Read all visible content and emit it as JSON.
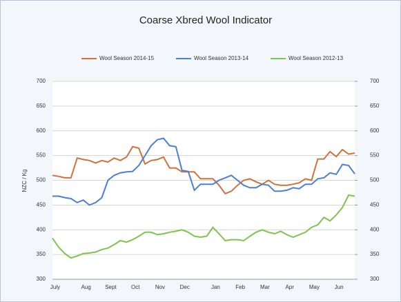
{
  "chart_data": {
    "type": "line",
    "title": "Coarse Xbred Wool Indicator",
    "y_label": "NZC / Kg",
    "categories": [
      "July",
      null,
      null,
      null,
      null,
      "Aug",
      null,
      null,
      null,
      "Sept",
      null,
      null,
      null,
      "Oct",
      null,
      null,
      null,
      "Nov",
      null,
      null,
      null,
      "Dec",
      null,
      null,
      null,
      null,
      "Jan",
      null,
      null,
      null,
      "Feb",
      null,
      null,
      null,
      "Mar",
      null,
      null,
      null,
      "Apr",
      null,
      null,
      null,
      "May",
      null,
      null,
      null,
      "Jun",
      null,
      null,
      null
    ],
    "series": [
      {
        "name": "Wool Season 2014-15",
        "color": "#d0703a",
        "values": [
          510,
          508,
          505,
          505,
          545,
          542,
          540,
          535,
          540,
          537,
          545,
          540,
          547,
          568,
          565,
          533,
          540,
          542,
          547,
          525,
          525,
          517,
          517,
          517,
          503,
          503,
          503,
          490,
          473,
          478,
          490,
          500,
          503,
          497,
          492,
          500,
          492,
          490,
          490,
          492,
          495,
          503,
          500,
          543,
          543,
          558,
          548,
          562,
          553,
          555
        ]
      },
      {
        "name": "Wool Season 2013-14",
        "color": "#4a7fd4",
        "values": [
          468,
          468,
          465,
          463,
          455,
          460,
          450,
          455,
          465,
          500,
          510,
          515,
          517,
          518,
          530,
          550,
          570,
          582,
          585,
          570,
          568,
          520,
          518,
          480,
          492,
          492,
          492,
          500,
          505,
          510,
          500,
          490,
          485,
          485,
          492,
          490,
          478,
          478,
          480,
          485,
          483,
          492,
          492,
          503,
          505,
          515,
          512,
          532,
          530,
          513
        ]
      },
      {
        "name": "Wool Season 2012-13",
        "color": "#7dc44b",
        "values": [
          383,
          365,
          352,
          343,
          347,
          352,
          353,
          355,
          360,
          363,
          370,
          378,
          375,
          380,
          387,
          395,
          395,
          390,
          392,
          395,
          397,
          400,
          395,
          387,
          385,
          387,
          405,
          392,
          378,
          380,
          380,
          378,
          387,
          395,
          400,
          395,
          392,
          397,
          390,
          385,
          390,
          395,
          405,
          410,
          425,
          418,
          430,
          445,
          470,
          468
        ]
      }
    ],
    "ylim": [
      300,
      700
    ],
    "yticks": [
      300,
      350,
      400,
      450,
      500,
      550,
      600,
      650,
      700
    ],
    "y2lim": [
      300,
      700
    ],
    "y2ticks": [
      300,
      350,
      400,
      450,
      500,
      550,
      600,
      650,
      700
    ],
    "grid": true,
    "legend": "top"
  }
}
